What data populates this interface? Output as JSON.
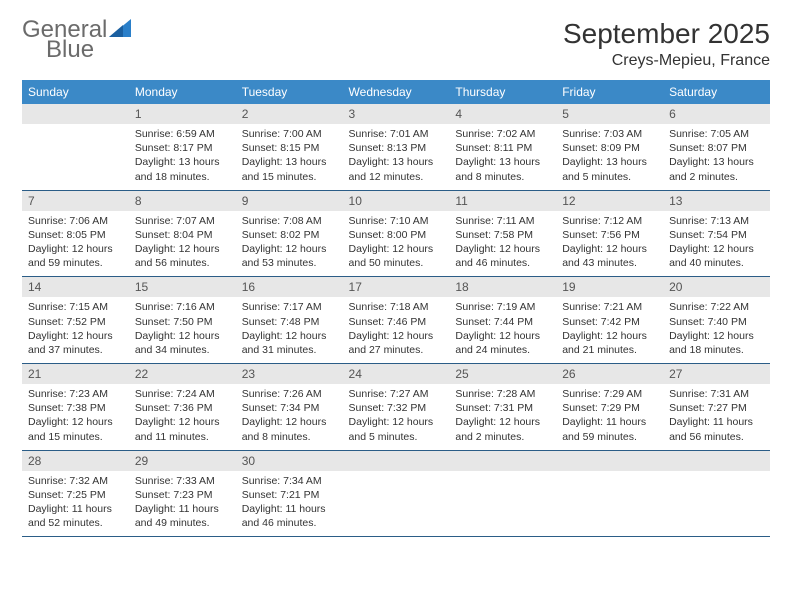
{
  "brand": {
    "part1": "General",
    "part2": "Blue"
  },
  "title": "September 2025",
  "location": "Creys-Mepieu, France",
  "colors": {
    "header_bg": "#3b89c7",
    "header_text": "#ffffff",
    "daynum_bg": "#e7e7e7",
    "daynum_text": "#555555",
    "border": "#2b5d87",
    "body_text": "#333333",
    "logo_gray": "#6b6b6b",
    "logo_blue": "#2a7fc9"
  },
  "dayHeaders": [
    "Sunday",
    "Monday",
    "Tuesday",
    "Wednesday",
    "Thursday",
    "Friday",
    "Saturday"
  ],
  "weeks": [
    [
      {
        "n": "",
        "sr": "",
        "ss": "",
        "dl": ""
      },
      {
        "n": "1",
        "sr": "Sunrise: 6:59 AM",
        "ss": "Sunset: 8:17 PM",
        "dl": "Daylight: 13 hours and 18 minutes."
      },
      {
        "n": "2",
        "sr": "Sunrise: 7:00 AM",
        "ss": "Sunset: 8:15 PM",
        "dl": "Daylight: 13 hours and 15 minutes."
      },
      {
        "n": "3",
        "sr": "Sunrise: 7:01 AM",
        "ss": "Sunset: 8:13 PM",
        "dl": "Daylight: 13 hours and 12 minutes."
      },
      {
        "n": "4",
        "sr": "Sunrise: 7:02 AM",
        "ss": "Sunset: 8:11 PM",
        "dl": "Daylight: 13 hours and 8 minutes."
      },
      {
        "n": "5",
        "sr": "Sunrise: 7:03 AM",
        "ss": "Sunset: 8:09 PM",
        "dl": "Daylight: 13 hours and 5 minutes."
      },
      {
        "n": "6",
        "sr": "Sunrise: 7:05 AM",
        "ss": "Sunset: 8:07 PM",
        "dl": "Daylight: 13 hours and 2 minutes."
      }
    ],
    [
      {
        "n": "7",
        "sr": "Sunrise: 7:06 AM",
        "ss": "Sunset: 8:05 PM",
        "dl": "Daylight: 12 hours and 59 minutes."
      },
      {
        "n": "8",
        "sr": "Sunrise: 7:07 AM",
        "ss": "Sunset: 8:04 PM",
        "dl": "Daylight: 12 hours and 56 minutes."
      },
      {
        "n": "9",
        "sr": "Sunrise: 7:08 AM",
        "ss": "Sunset: 8:02 PM",
        "dl": "Daylight: 12 hours and 53 minutes."
      },
      {
        "n": "10",
        "sr": "Sunrise: 7:10 AM",
        "ss": "Sunset: 8:00 PM",
        "dl": "Daylight: 12 hours and 50 minutes."
      },
      {
        "n": "11",
        "sr": "Sunrise: 7:11 AM",
        "ss": "Sunset: 7:58 PM",
        "dl": "Daylight: 12 hours and 46 minutes."
      },
      {
        "n": "12",
        "sr": "Sunrise: 7:12 AM",
        "ss": "Sunset: 7:56 PM",
        "dl": "Daylight: 12 hours and 43 minutes."
      },
      {
        "n": "13",
        "sr": "Sunrise: 7:13 AM",
        "ss": "Sunset: 7:54 PM",
        "dl": "Daylight: 12 hours and 40 minutes."
      }
    ],
    [
      {
        "n": "14",
        "sr": "Sunrise: 7:15 AM",
        "ss": "Sunset: 7:52 PM",
        "dl": "Daylight: 12 hours and 37 minutes."
      },
      {
        "n": "15",
        "sr": "Sunrise: 7:16 AM",
        "ss": "Sunset: 7:50 PM",
        "dl": "Daylight: 12 hours and 34 minutes."
      },
      {
        "n": "16",
        "sr": "Sunrise: 7:17 AM",
        "ss": "Sunset: 7:48 PM",
        "dl": "Daylight: 12 hours and 31 minutes."
      },
      {
        "n": "17",
        "sr": "Sunrise: 7:18 AM",
        "ss": "Sunset: 7:46 PM",
        "dl": "Daylight: 12 hours and 27 minutes."
      },
      {
        "n": "18",
        "sr": "Sunrise: 7:19 AM",
        "ss": "Sunset: 7:44 PM",
        "dl": "Daylight: 12 hours and 24 minutes."
      },
      {
        "n": "19",
        "sr": "Sunrise: 7:21 AM",
        "ss": "Sunset: 7:42 PM",
        "dl": "Daylight: 12 hours and 21 minutes."
      },
      {
        "n": "20",
        "sr": "Sunrise: 7:22 AM",
        "ss": "Sunset: 7:40 PM",
        "dl": "Daylight: 12 hours and 18 minutes."
      }
    ],
    [
      {
        "n": "21",
        "sr": "Sunrise: 7:23 AM",
        "ss": "Sunset: 7:38 PM",
        "dl": "Daylight: 12 hours and 15 minutes."
      },
      {
        "n": "22",
        "sr": "Sunrise: 7:24 AM",
        "ss": "Sunset: 7:36 PM",
        "dl": "Daylight: 12 hours and 11 minutes."
      },
      {
        "n": "23",
        "sr": "Sunrise: 7:26 AM",
        "ss": "Sunset: 7:34 PM",
        "dl": "Daylight: 12 hours and 8 minutes."
      },
      {
        "n": "24",
        "sr": "Sunrise: 7:27 AM",
        "ss": "Sunset: 7:32 PM",
        "dl": "Daylight: 12 hours and 5 minutes."
      },
      {
        "n": "25",
        "sr": "Sunrise: 7:28 AM",
        "ss": "Sunset: 7:31 PM",
        "dl": "Daylight: 12 hours and 2 minutes."
      },
      {
        "n": "26",
        "sr": "Sunrise: 7:29 AM",
        "ss": "Sunset: 7:29 PM",
        "dl": "Daylight: 11 hours and 59 minutes."
      },
      {
        "n": "27",
        "sr": "Sunrise: 7:31 AM",
        "ss": "Sunset: 7:27 PM",
        "dl": "Daylight: 11 hours and 56 minutes."
      }
    ],
    [
      {
        "n": "28",
        "sr": "Sunrise: 7:32 AM",
        "ss": "Sunset: 7:25 PM",
        "dl": "Daylight: 11 hours and 52 minutes."
      },
      {
        "n": "29",
        "sr": "Sunrise: 7:33 AM",
        "ss": "Sunset: 7:23 PM",
        "dl": "Daylight: 11 hours and 49 minutes."
      },
      {
        "n": "30",
        "sr": "Sunrise: 7:34 AM",
        "ss": "Sunset: 7:21 PM",
        "dl": "Daylight: 11 hours and 46 minutes."
      },
      {
        "n": "",
        "sr": "",
        "ss": "",
        "dl": ""
      },
      {
        "n": "",
        "sr": "",
        "ss": "",
        "dl": ""
      },
      {
        "n": "",
        "sr": "",
        "ss": "",
        "dl": ""
      },
      {
        "n": "",
        "sr": "",
        "ss": "",
        "dl": ""
      }
    ]
  ]
}
